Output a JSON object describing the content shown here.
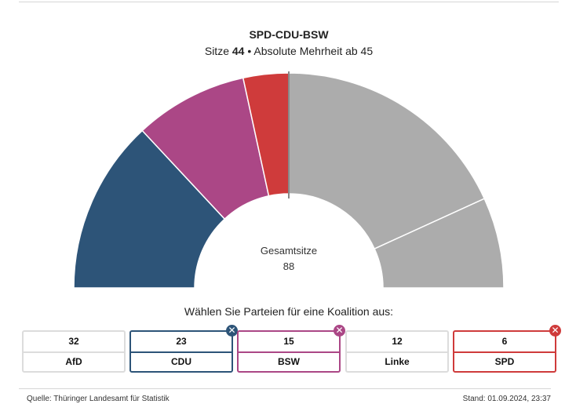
{
  "header": {
    "title": "SPD-CDU-BSW",
    "subtitle_prefix": "Sitze ",
    "subtitle_seats": "44",
    "subtitle_suffix": " • Absolute Mehrheit ab 45"
  },
  "center": {
    "label": "Gesamtsitze",
    "value": "88"
  },
  "prompt": "Wählen Sie Parteien für eine Koalition aus:",
  "parties": [
    {
      "name": "AfD",
      "seats": "32",
      "selected": false,
      "color": "#dcdcdc"
    },
    {
      "name": "CDU",
      "seats": "23",
      "selected": true,
      "color": "#2d5478"
    },
    {
      "name": "BSW",
      "seats": "15",
      "selected": true,
      "color": "#ab4786"
    },
    {
      "name": "Linke",
      "seats": "12",
      "selected": false,
      "color": "#dcdcdc"
    },
    {
      "name": "SPD",
      "seats": "6",
      "selected": true,
      "color": "#cf3b3b"
    }
  ],
  "badge_icon": "✕",
  "footer": {
    "source": "Quelle: Thüringer Landesamt für Statistik",
    "stand": "Stand: 01.09.2024, 23:37"
  },
  "colors": {
    "cdu": "#2d5478",
    "bsw": "#ab4786",
    "spd": "#cf3b3b",
    "other": "#acacac",
    "majority_line": "#888888"
  },
  "chart_data": {
    "type": "pie",
    "subtype": "half-donut parliament seat chart",
    "title": "SPD-CDU-BSW",
    "subtitle": "Sitze 44 • Absolute Mehrheit ab 45",
    "total_seats": 88,
    "majority_threshold": 45,
    "coalition_seats": 44,
    "segments_left_to_right": [
      {
        "party": "CDU",
        "seats": 23,
        "in_coalition": true,
        "color": "#2d5478"
      },
      {
        "party": "BSW",
        "seats": 15,
        "in_coalition": true,
        "color": "#ab4786"
      },
      {
        "party": "SPD",
        "seats": 6,
        "in_coalition": true,
        "color": "#cf3b3b"
      },
      {
        "party": "AfD",
        "seats": 32,
        "in_coalition": false,
        "color": "#acacac"
      },
      {
        "party": "Linke",
        "seats": 12,
        "in_coalition": false,
        "color": "#acacac"
      }
    ],
    "center_label": "Gesamtsitze 88",
    "annotations": [
      "majority marker line at top center (50%)"
    ]
  }
}
